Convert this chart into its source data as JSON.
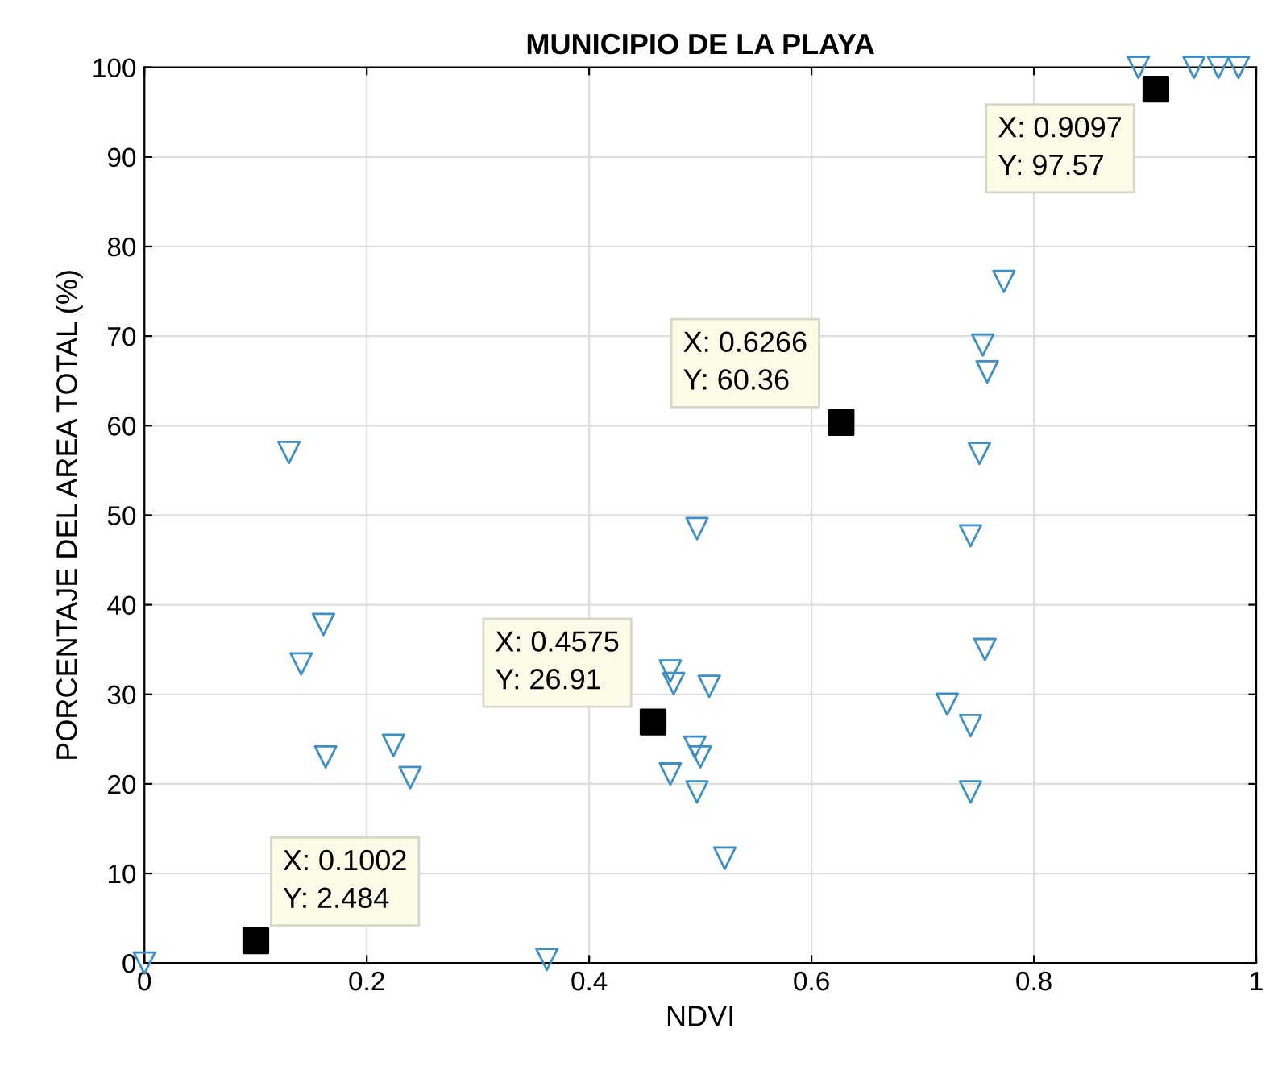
{
  "chart_data": {
    "type": "scatter",
    "title": "MUNICIPIO DE LA PLAYA",
    "xlabel": "NDVI",
    "ylabel": "PORCENTAJE DEL AREA TOTAL (%)",
    "xlim": [
      0,
      1
    ],
    "ylim": [
      0,
      100
    ],
    "xticks": [
      0,
      0.2,
      0.4,
      0.6,
      0.8,
      1
    ],
    "yticks": [
      0,
      10,
      20,
      30,
      40,
      50,
      60,
      70,
      80,
      90,
      100
    ],
    "grid": true,
    "series": [
      {
        "color": "#3d8fc6",
        "marker": "triangle",
        "x": [
          0,
          0.13,
          0.161,
          0.141,
          0.163,
          0.224,
          0.239,
          0.362,
          0.473,
          0.476,
          0.473,
          0.497,
          0.508,
          0.495,
          0.5,
          0.497,
          0.522,
          0.773,
          0.754,
          0.758,
          0.751,
          0.743,
          0.756,
          0.722,
          0.743,
          0.743,
          0.894,
          0.944,
          0.966,
          0.984
        ],
        "values": [
          0,
          57,
          37.8,
          33.4,
          23,
          24.3,
          20.7,
          0.4,
          32.6,
          31.2,
          21.1,
          48.5,
          30.9,
          24.1,
          23,
          19.1,
          11.7,
          76.1,
          69,
          66,
          56.9,
          47.7,
          35,
          28.9,
          26.5,
          19.1,
          100,
          100,
          100,
          100
        ]
      },
      {
        "color": "#000000",
        "marker": "square",
        "x": [
          0.1002,
          0.4575,
          0.6266,
          0.9097
        ],
        "values": [
          2.484,
          26.91,
          60.36,
          97.57
        ]
      }
    ],
    "annotations": [
      {
        "text": "X: 0.1002\nY: 2.484",
        "x": 0.1002,
        "y": 2.484
      },
      {
        "text": "X: 0.4575\nY: 26.91",
        "x": 0.4575,
        "y": 26.91
      },
      {
        "text": "X: 0.6266\nY: 60.36",
        "x": 0.6266,
        "y": 60.36
      },
      {
        "text": "X: 0.9097\nY: 97.57",
        "x": 0.9097,
        "y": 97.57
      }
    ]
  }
}
